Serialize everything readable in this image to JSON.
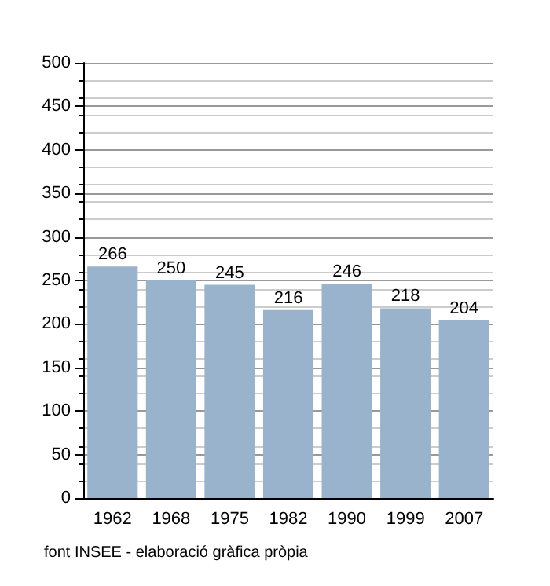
{
  "chart_data": {
    "type": "bar",
    "categories": [
      "1962",
      "1968",
      "1975",
      "1982",
      "1990",
      "1999",
      "2007"
    ],
    "values": [
      266,
      250,
      245,
      216,
      246,
      218,
      204
    ],
    "color": "#9ab3cc",
    "data_labels": true,
    "ylim": [
      0,
      500
    ],
    "yticks": [
      0,
      50,
      100,
      150,
      200,
      250,
      300,
      350,
      400,
      450,
      500
    ],
    "grid": "y",
    "annotations": [
      "font INSEE - elaboració gràfica pròpia"
    ]
  }
}
